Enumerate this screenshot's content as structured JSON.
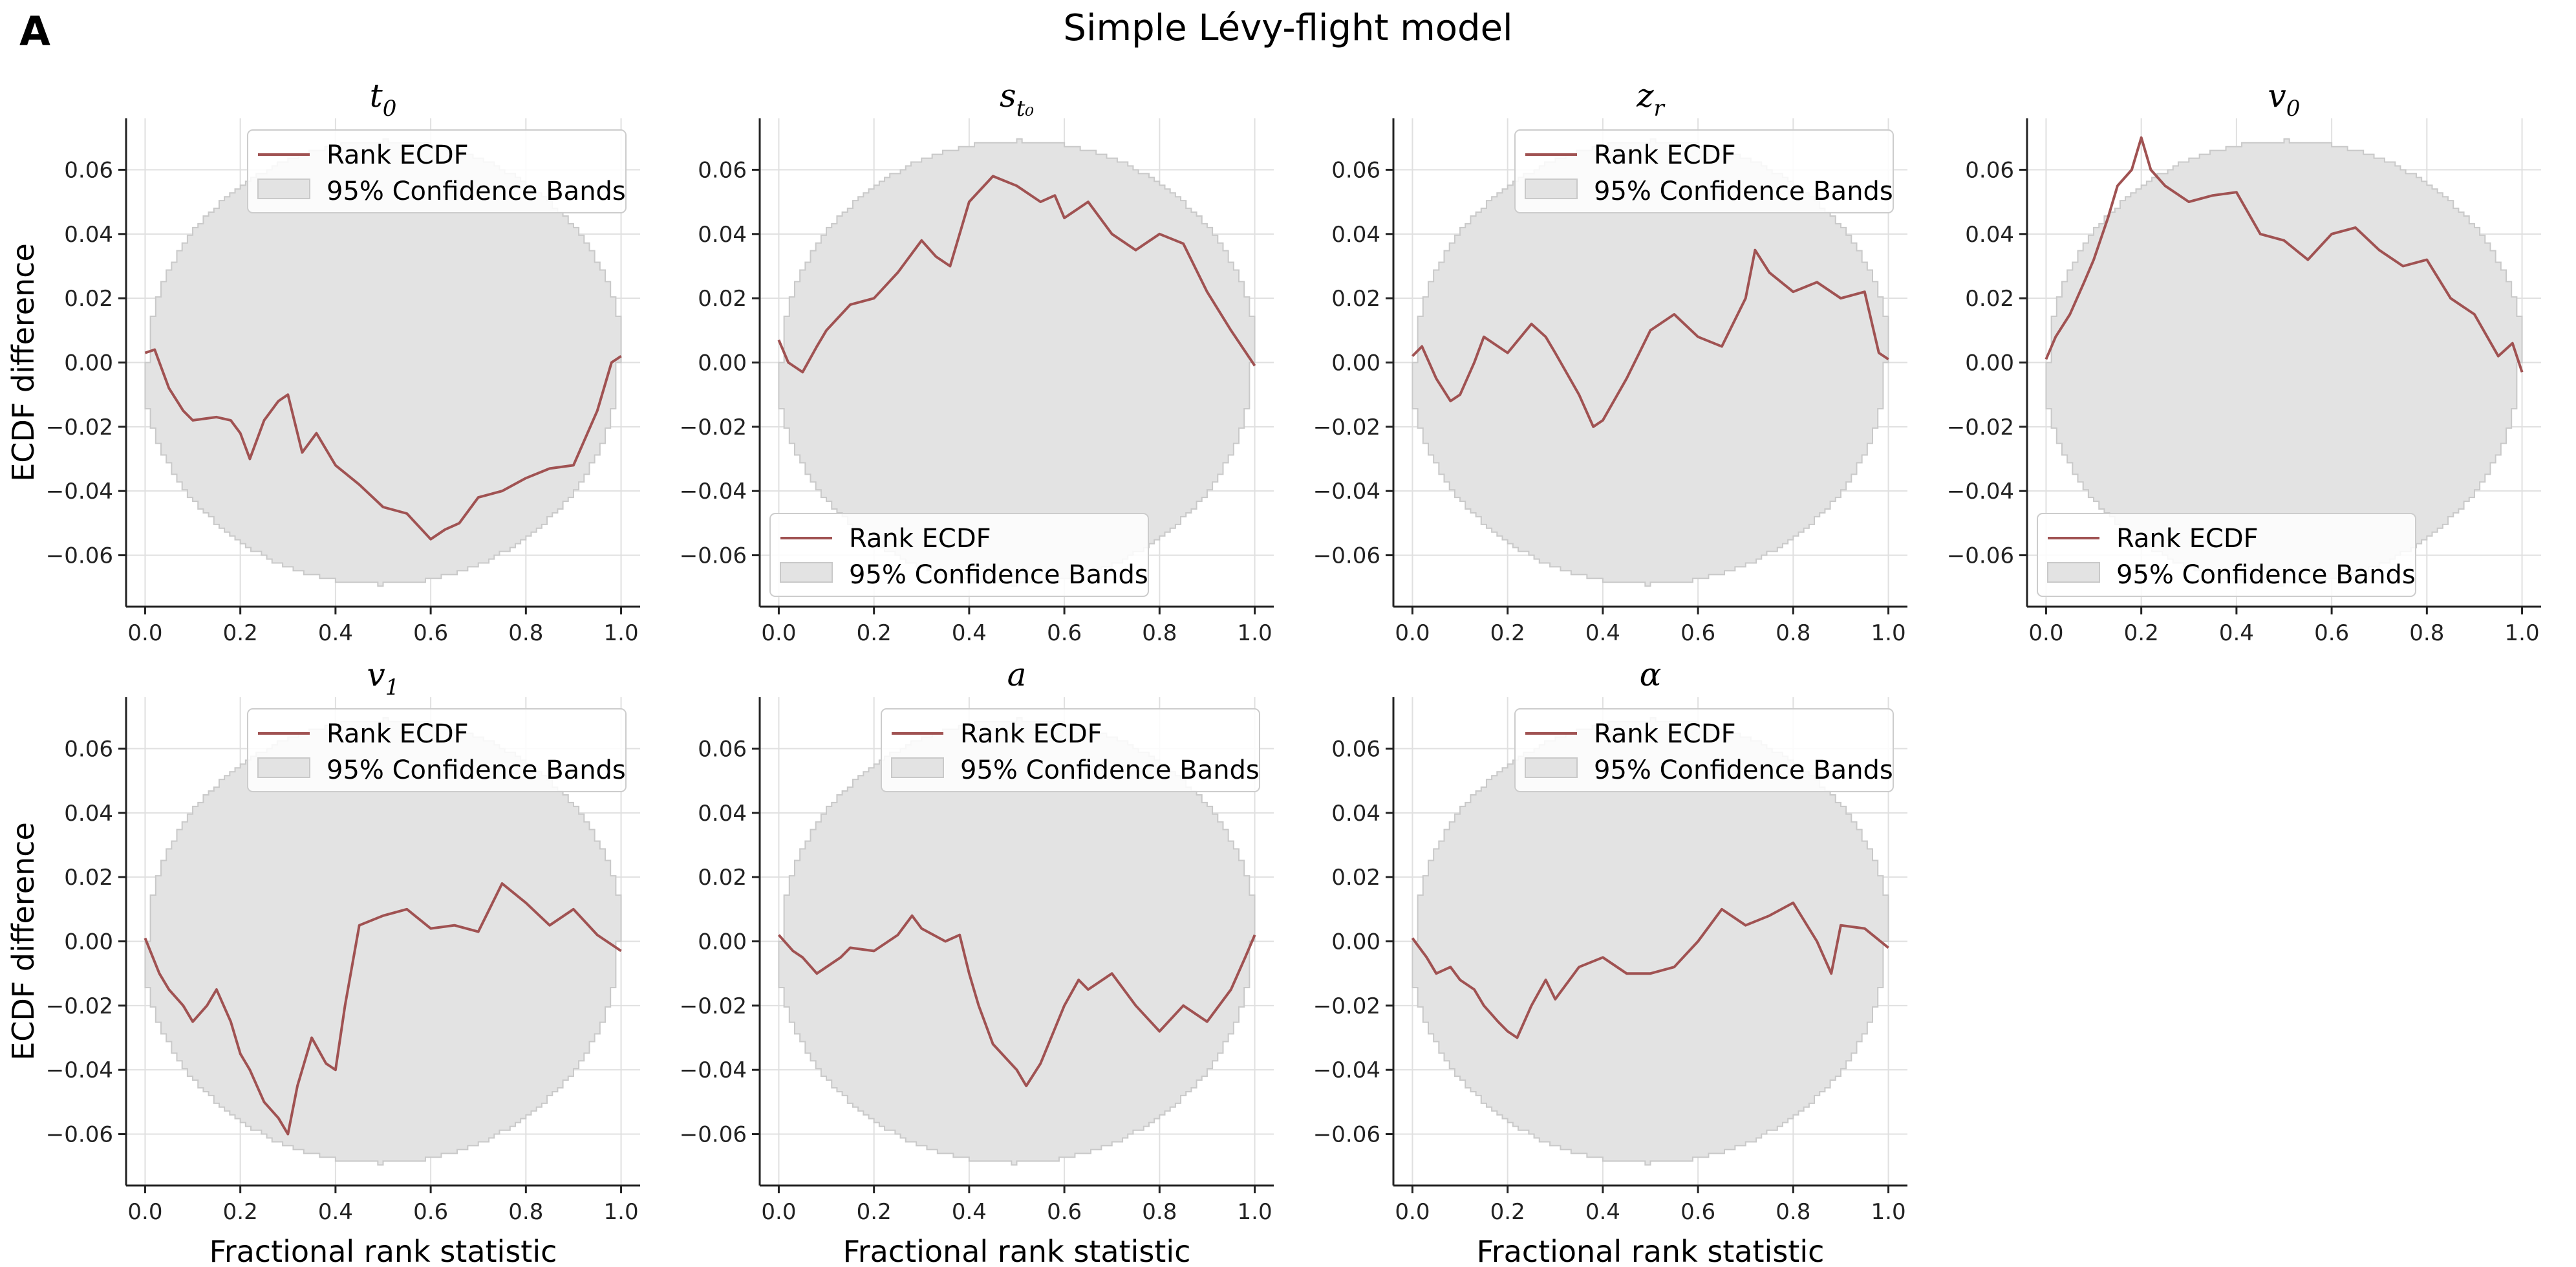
{
  "figure": {
    "panel_label": "A",
    "title": "Simple Lévy-flight model"
  },
  "colors": {
    "line": "#a05252",
    "band_fill": "#e3e3e3",
    "band_edge": "#c9c9c9",
    "grid": "#e0e0e0",
    "axis": "#222222"
  },
  "chart_data": [
    {
      "type": "line",
      "subplot_title": "t",
      "subplot_title_sub": "0",
      "ylabel": "ECDF difference",
      "xlabel": "",
      "xlim": [
        -0.04,
        1.04
      ],
      "ylim": [
        -0.076,
        0.076
      ],
      "xticks": [
        "0.0",
        "0.2",
        "0.4",
        "0.6",
        "0.8",
        "1.0"
      ],
      "yticks": [
        "−0.06",
        "−0.04",
        "−0.02",
        "0.00",
        "0.02",
        "0.04",
        "0.06"
      ],
      "legend": {
        "position": "upper right",
        "line_label": "Rank ECDF",
        "band_label": "95% Confidence Bands"
      },
      "band_halfwidth_max": 0.069,
      "series": [
        {
          "name": "Rank ECDF",
          "x": [
            0.0,
            0.02,
            0.05,
            0.08,
            0.1,
            0.15,
            0.18,
            0.2,
            0.22,
            0.25,
            0.28,
            0.3,
            0.33,
            0.36,
            0.4,
            0.45,
            0.5,
            0.55,
            0.6,
            0.63,
            0.66,
            0.7,
            0.75,
            0.8,
            0.85,
            0.9,
            0.95,
            0.98,
            1.0
          ],
          "y": [
            0.003,
            0.004,
            -0.008,
            -0.015,
            -0.018,
            -0.017,
            -0.018,
            -0.022,
            -0.03,
            -0.018,
            -0.012,
            -0.01,
            -0.028,
            -0.022,
            -0.032,
            -0.038,
            -0.045,
            -0.047,
            -0.055,
            -0.052,
            -0.05,
            -0.042,
            -0.04,
            -0.036,
            -0.033,
            -0.032,
            -0.015,
            0.0,
            0.002
          ]
        }
      ]
    },
    {
      "type": "line",
      "subplot_title": "s",
      "subplot_title_sub": "t₀",
      "ylabel": "",
      "xlabel": "",
      "xlim": [
        -0.04,
        1.04
      ],
      "ylim": [
        -0.076,
        0.076
      ],
      "xticks": [
        "0.0",
        "0.2",
        "0.4",
        "0.6",
        "0.8",
        "1.0"
      ],
      "yticks": [
        "−0.06",
        "−0.04",
        "−0.02",
        "0.00",
        "0.02",
        "0.04",
        "0.06"
      ],
      "legend": {
        "position": "lower left",
        "line_label": "Rank ECDF",
        "band_label": "95% Confidence Bands"
      },
      "band_halfwidth_max": 0.069,
      "series": [
        {
          "name": "Rank ECDF",
          "x": [
            0.0,
            0.02,
            0.05,
            0.08,
            0.1,
            0.15,
            0.2,
            0.25,
            0.3,
            0.33,
            0.36,
            0.4,
            0.45,
            0.5,
            0.55,
            0.58,
            0.6,
            0.65,
            0.7,
            0.75,
            0.8,
            0.85,
            0.9,
            0.95,
            1.0
          ],
          "y": [
            0.007,
            0.0,
            -0.003,
            0.005,
            0.01,
            0.018,
            0.02,
            0.028,
            0.038,
            0.033,
            0.03,
            0.05,
            0.058,
            0.055,
            0.05,
            0.052,
            0.045,
            0.05,
            0.04,
            0.035,
            0.04,
            0.037,
            0.022,
            0.01,
            -0.001
          ]
        }
      ]
    },
    {
      "type": "line",
      "subplot_title": "z",
      "subplot_title_sub": "r",
      "ylabel": "",
      "xlabel": "",
      "xlim": [
        -0.04,
        1.04
      ],
      "ylim": [
        -0.076,
        0.076
      ],
      "xticks": [
        "0.0",
        "0.2",
        "0.4",
        "0.6",
        "0.8",
        "1.0"
      ],
      "yticks": [
        "−0.06",
        "−0.04",
        "−0.02",
        "0.00",
        "0.02",
        "0.04",
        "0.06"
      ],
      "legend": {
        "position": "upper right",
        "line_label": "Rank ECDF",
        "band_label": "95% Confidence Bands"
      },
      "band_halfwidth_max": 0.069,
      "series": [
        {
          "name": "Rank ECDF",
          "x": [
            0.0,
            0.02,
            0.05,
            0.08,
            0.1,
            0.13,
            0.15,
            0.2,
            0.25,
            0.28,
            0.3,
            0.35,
            0.38,
            0.4,
            0.45,
            0.5,
            0.55,
            0.6,
            0.65,
            0.7,
            0.72,
            0.75,
            0.8,
            0.85,
            0.9,
            0.95,
            0.98,
            1.0
          ],
          "y": [
            0.002,
            0.005,
            -0.005,
            -0.012,
            -0.01,
            0.0,
            0.008,
            0.003,
            0.012,
            0.008,
            0.003,
            -0.01,
            -0.02,
            -0.018,
            -0.005,
            0.01,
            0.015,
            0.008,
            0.005,
            0.02,
            0.035,
            0.028,
            0.022,
            0.025,
            0.02,
            0.022,
            0.003,
            0.001
          ]
        }
      ]
    },
    {
      "type": "line",
      "subplot_title": "v",
      "subplot_title_sub": "0",
      "ylabel": "",
      "xlabel": "",
      "xlim": [
        -0.04,
        1.04
      ],
      "ylim": [
        -0.076,
        0.076
      ],
      "xticks": [
        "0.0",
        "0.2",
        "0.4",
        "0.6",
        "0.8",
        "1.0"
      ],
      "yticks": [
        "−0.06",
        "−0.04",
        "−0.02",
        "0.00",
        "0.02",
        "0.04",
        "0.06"
      ],
      "legend": {
        "position": "lower left",
        "line_label": "Rank ECDF",
        "band_label": "95% Confidence Bands"
      },
      "band_halfwidth_max": 0.069,
      "series": [
        {
          "name": "Rank ECDF",
          "x": [
            0.0,
            0.02,
            0.05,
            0.08,
            0.1,
            0.13,
            0.15,
            0.18,
            0.2,
            0.22,
            0.25,
            0.3,
            0.35,
            0.4,
            0.45,
            0.5,
            0.55,
            0.6,
            0.65,
            0.7,
            0.75,
            0.8,
            0.85,
            0.9,
            0.95,
            0.98,
            1.0
          ],
          "y": [
            0.001,
            0.008,
            0.015,
            0.025,
            0.032,
            0.045,
            0.055,
            0.06,
            0.07,
            0.06,
            0.055,
            0.05,
            0.052,
            0.053,
            0.04,
            0.038,
            0.032,
            0.04,
            0.042,
            0.035,
            0.03,
            0.032,
            0.02,
            0.015,
            0.002,
            0.006,
            -0.003
          ]
        }
      ]
    },
    {
      "type": "line",
      "subplot_title": "v",
      "subplot_title_sub": "1",
      "ylabel": "ECDF difference",
      "xlabel": "Fractional rank statistic",
      "xlim": [
        -0.04,
        1.04
      ],
      "ylim": [
        -0.076,
        0.076
      ],
      "xticks": [
        "0.0",
        "0.2",
        "0.4",
        "0.6",
        "0.8",
        "1.0"
      ],
      "yticks": [
        "−0.06",
        "−0.04",
        "−0.02",
        "0.00",
        "0.02",
        "0.04",
        "0.06"
      ],
      "legend": {
        "position": "upper right",
        "line_label": "Rank ECDF",
        "band_label": "95% Confidence Bands"
      },
      "band_halfwidth_max": 0.069,
      "series": [
        {
          "name": "Rank ECDF",
          "x": [
            0.0,
            0.03,
            0.05,
            0.08,
            0.1,
            0.13,
            0.15,
            0.18,
            0.2,
            0.22,
            0.25,
            0.28,
            0.3,
            0.32,
            0.35,
            0.38,
            0.4,
            0.42,
            0.45,
            0.5,
            0.55,
            0.6,
            0.65,
            0.7,
            0.75,
            0.8,
            0.85,
            0.9,
            0.95,
            1.0
          ],
          "y": [
            0.001,
            -0.01,
            -0.015,
            -0.02,
            -0.025,
            -0.02,
            -0.015,
            -0.025,
            -0.035,
            -0.04,
            -0.05,
            -0.055,
            -0.06,
            -0.045,
            -0.03,
            -0.038,
            -0.04,
            -0.02,
            0.005,
            0.008,
            0.01,
            0.004,
            0.005,
            0.003,
            0.018,
            0.012,
            0.005,
            0.01,
            0.002,
            -0.003
          ]
        }
      ]
    },
    {
      "type": "line",
      "subplot_title": "a",
      "subplot_title_sub": "",
      "ylabel": "",
      "xlabel": "Fractional rank statistic",
      "xlim": [
        -0.04,
        1.04
      ],
      "ylim": [
        -0.076,
        0.076
      ],
      "xticks": [
        "0.0",
        "0.2",
        "0.4",
        "0.6",
        "0.8",
        "1.0"
      ],
      "yticks": [
        "−0.06",
        "−0.04",
        "−0.02",
        "0.00",
        "0.02",
        "0.04",
        "0.06"
      ],
      "legend": {
        "position": "upper right",
        "line_label": "Rank ECDF",
        "band_label": "95% Confidence Bands"
      },
      "band_halfwidth_max": 0.069,
      "series": [
        {
          "name": "Rank ECDF",
          "x": [
            0.0,
            0.03,
            0.05,
            0.08,
            0.1,
            0.13,
            0.15,
            0.2,
            0.25,
            0.28,
            0.3,
            0.35,
            0.38,
            0.4,
            0.42,
            0.45,
            0.5,
            0.52,
            0.55,
            0.6,
            0.63,
            0.65,
            0.7,
            0.75,
            0.8,
            0.85,
            0.9,
            0.95,
            0.98,
            1.0
          ],
          "y": [
            0.002,
            -0.003,
            -0.005,
            -0.01,
            -0.008,
            -0.005,
            -0.002,
            -0.003,
            0.002,
            0.008,
            0.004,
            0.0,
            0.002,
            -0.01,
            -0.02,
            -0.032,
            -0.04,
            -0.045,
            -0.038,
            -0.02,
            -0.012,
            -0.015,
            -0.01,
            -0.02,
            -0.028,
            -0.02,
            -0.025,
            -0.015,
            -0.005,
            0.002
          ]
        }
      ]
    },
    {
      "type": "line",
      "subplot_title": "α",
      "subplot_title_sub": "",
      "ylabel": "",
      "xlabel": "Fractional rank statistic",
      "xlim": [
        -0.04,
        1.04
      ],
      "ylim": [
        -0.076,
        0.076
      ],
      "xticks": [
        "0.0",
        "0.2",
        "0.4",
        "0.6",
        "0.8",
        "1.0"
      ],
      "yticks": [
        "−0.06",
        "−0.04",
        "−0.02",
        "0.00",
        "0.02",
        "0.04",
        "0.06"
      ],
      "legend": {
        "position": "upper right",
        "line_label": "Rank ECDF",
        "band_label": "95% Confidence Bands"
      },
      "band_halfwidth_max": 0.069,
      "series": [
        {
          "name": "Rank ECDF",
          "x": [
            0.0,
            0.03,
            0.05,
            0.08,
            0.1,
            0.13,
            0.15,
            0.18,
            0.2,
            0.22,
            0.25,
            0.28,
            0.3,
            0.35,
            0.4,
            0.45,
            0.5,
            0.55,
            0.6,
            0.65,
            0.7,
            0.75,
            0.8,
            0.85,
            0.88,
            0.9,
            0.95,
            1.0
          ],
          "y": [
            0.001,
            -0.005,
            -0.01,
            -0.008,
            -0.012,
            -0.015,
            -0.02,
            -0.025,
            -0.028,
            -0.03,
            -0.02,
            -0.012,
            -0.018,
            -0.008,
            -0.005,
            -0.01,
            -0.01,
            -0.008,
            0.0,
            0.01,
            0.005,
            0.008,
            0.012,
            0.0,
            -0.01,
            0.005,
            0.004,
            -0.002
          ]
        }
      ]
    }
  ]
}
